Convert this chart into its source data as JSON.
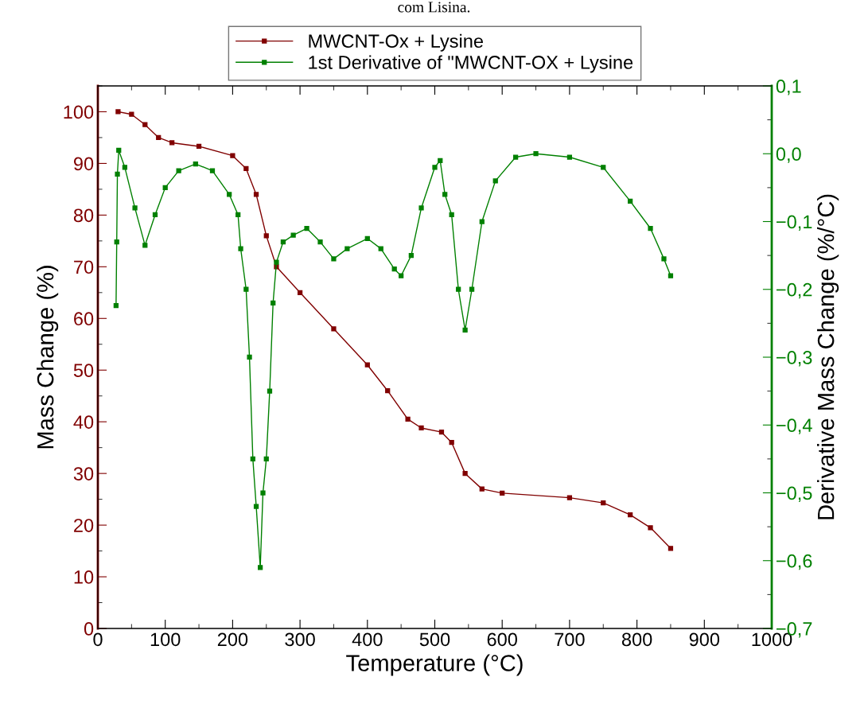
{
  "chart_data": {
    "type": "line",
    "title": "com Lisina.",
    "xlabel": "Temperature (°C)",
    "ylabel": "Mass Change (%)",
    "y2label": "Derivative Mass Change (%/°C)",
    "xlim": [
      0,
      1000
    ],
    "xticks": [
      0,
      100,
      200,
      300,
      400,
      500,
      600,
      700,
      800,
      900,
      1000
    ],
    "ylim": [
      0,
      105
    ],
    "yticks": [
      0,
      10,
      20,
      30,
      40,
      50,
      60,
      70,
      80,
      90,
      100
    ],
    "y2lim": [
      -0.7,
      0.1
    ],
    "y2ticks": [
      {
        "value": -0.7,
        "label": "−0,7"
      },
      {
        "value": -0.6,
        "label": "−0,6"
      },
      {
        "value": -0.5,
        "label": "−0,5"
      },
      {
        "value": -0.4,
        "label": "−0,4"
      },
      {
        "value": -0.3,
        "label": "−0,3"
      },
      {
        "value": -0.2,
        "label": "−0,2"
      },
      {
        "value": -0.1,
        "label": "−0,1"
      },
      {
        "value": 0.0,
        "label": "0,0"
      },
      {
        "value": 0.1,
        "label": "0,1"
      }
    ],
    "grid": false,
    "legend": "top",
    "marker": "square",
    "line_style": "solid",
    "series": [
      {
        "name": "MWCNT-Ox + Lysine",
        "color": "#800000",
        "x": [
          30,
          50,
          70,
          90,
          110,
          150,
          200,
          220,
          235,
          250,
          265,
          300,
          350,
          400,
          430,
          460,
          480,
          510,
          525,
          545,
          570,
          600,
          700,
          750,
          790,
          820,
          850
        ],
        "values": [
          100,
          99.5,
          97.5,
          95,
          94,
          93.3,
          91.5,
          89,
          84,
          76,
          70,
          65,
          58,
          51,
          46,
          40.5,
          38.8,
          38,
          36,
          30,
          27,
          26.2,
          25.3,
          24.3,
          22,
          19.5,
          15.5
        ]
      },
      {
        "name": "1st Derivative of \"MWCNT-OX + Lysine",
        "color": "#008000",
        "axis": "y2",
        "x": [
          27,
          28,
          29,
          31,
          40,
          55,
          70,
          85,
          100,
          120,
          145,
          170,
          195,
          208,
          212,
          220,
          225,
          230,
          235,
          241,
          245,
          250,
          255,
          260,
          265,
          275,
          290,
          310,
          330,
          350,
          370,
          400,
          420,
          440,
          450,
          465,
          480,
          500,
          508,
          515,
          525,
          535,
          545,
          555,
          570,
          590,
          620,
          650,
          700,
          750,
          790,
          820,
          840,
          850
        ],
        "values": [
          -0.224,
          -0.13,
          -0.03,
          0.005,
          -0.02,
          -0.08,
          -0.135,
          -0.09,
          -0.05,
          -0.025,
          -0.015,
          -0.025,
          -0.06,
          -0.09,
          -0.14,
          -0.2,
          -0.3,
          -0.45,
          -0.52,
          -0.61,
          -0.5,
          -0.45,
          -0.35,
          -0.22,
          -0.16,
          -0.13,
          -0.12,
          -0.11,
          -0.13,
          -0.155,
          -0.14,
          -0.125,
          -0.14,
          -0.17,
          -0.18,
          -0.15,
          -0.08,
          -0.02,
          -0.01,
          -0.06,
          -0.09,
          -0.2,
          -0.26,
          -0.2,
          -0.1,
          -0.04,
          -0.005,
          0.0,
          -0.005,
          -0.02,
          -0.07,
          -0.11,
          -0.155,
          -0.18
        ]
      }
    ]
  }
}
